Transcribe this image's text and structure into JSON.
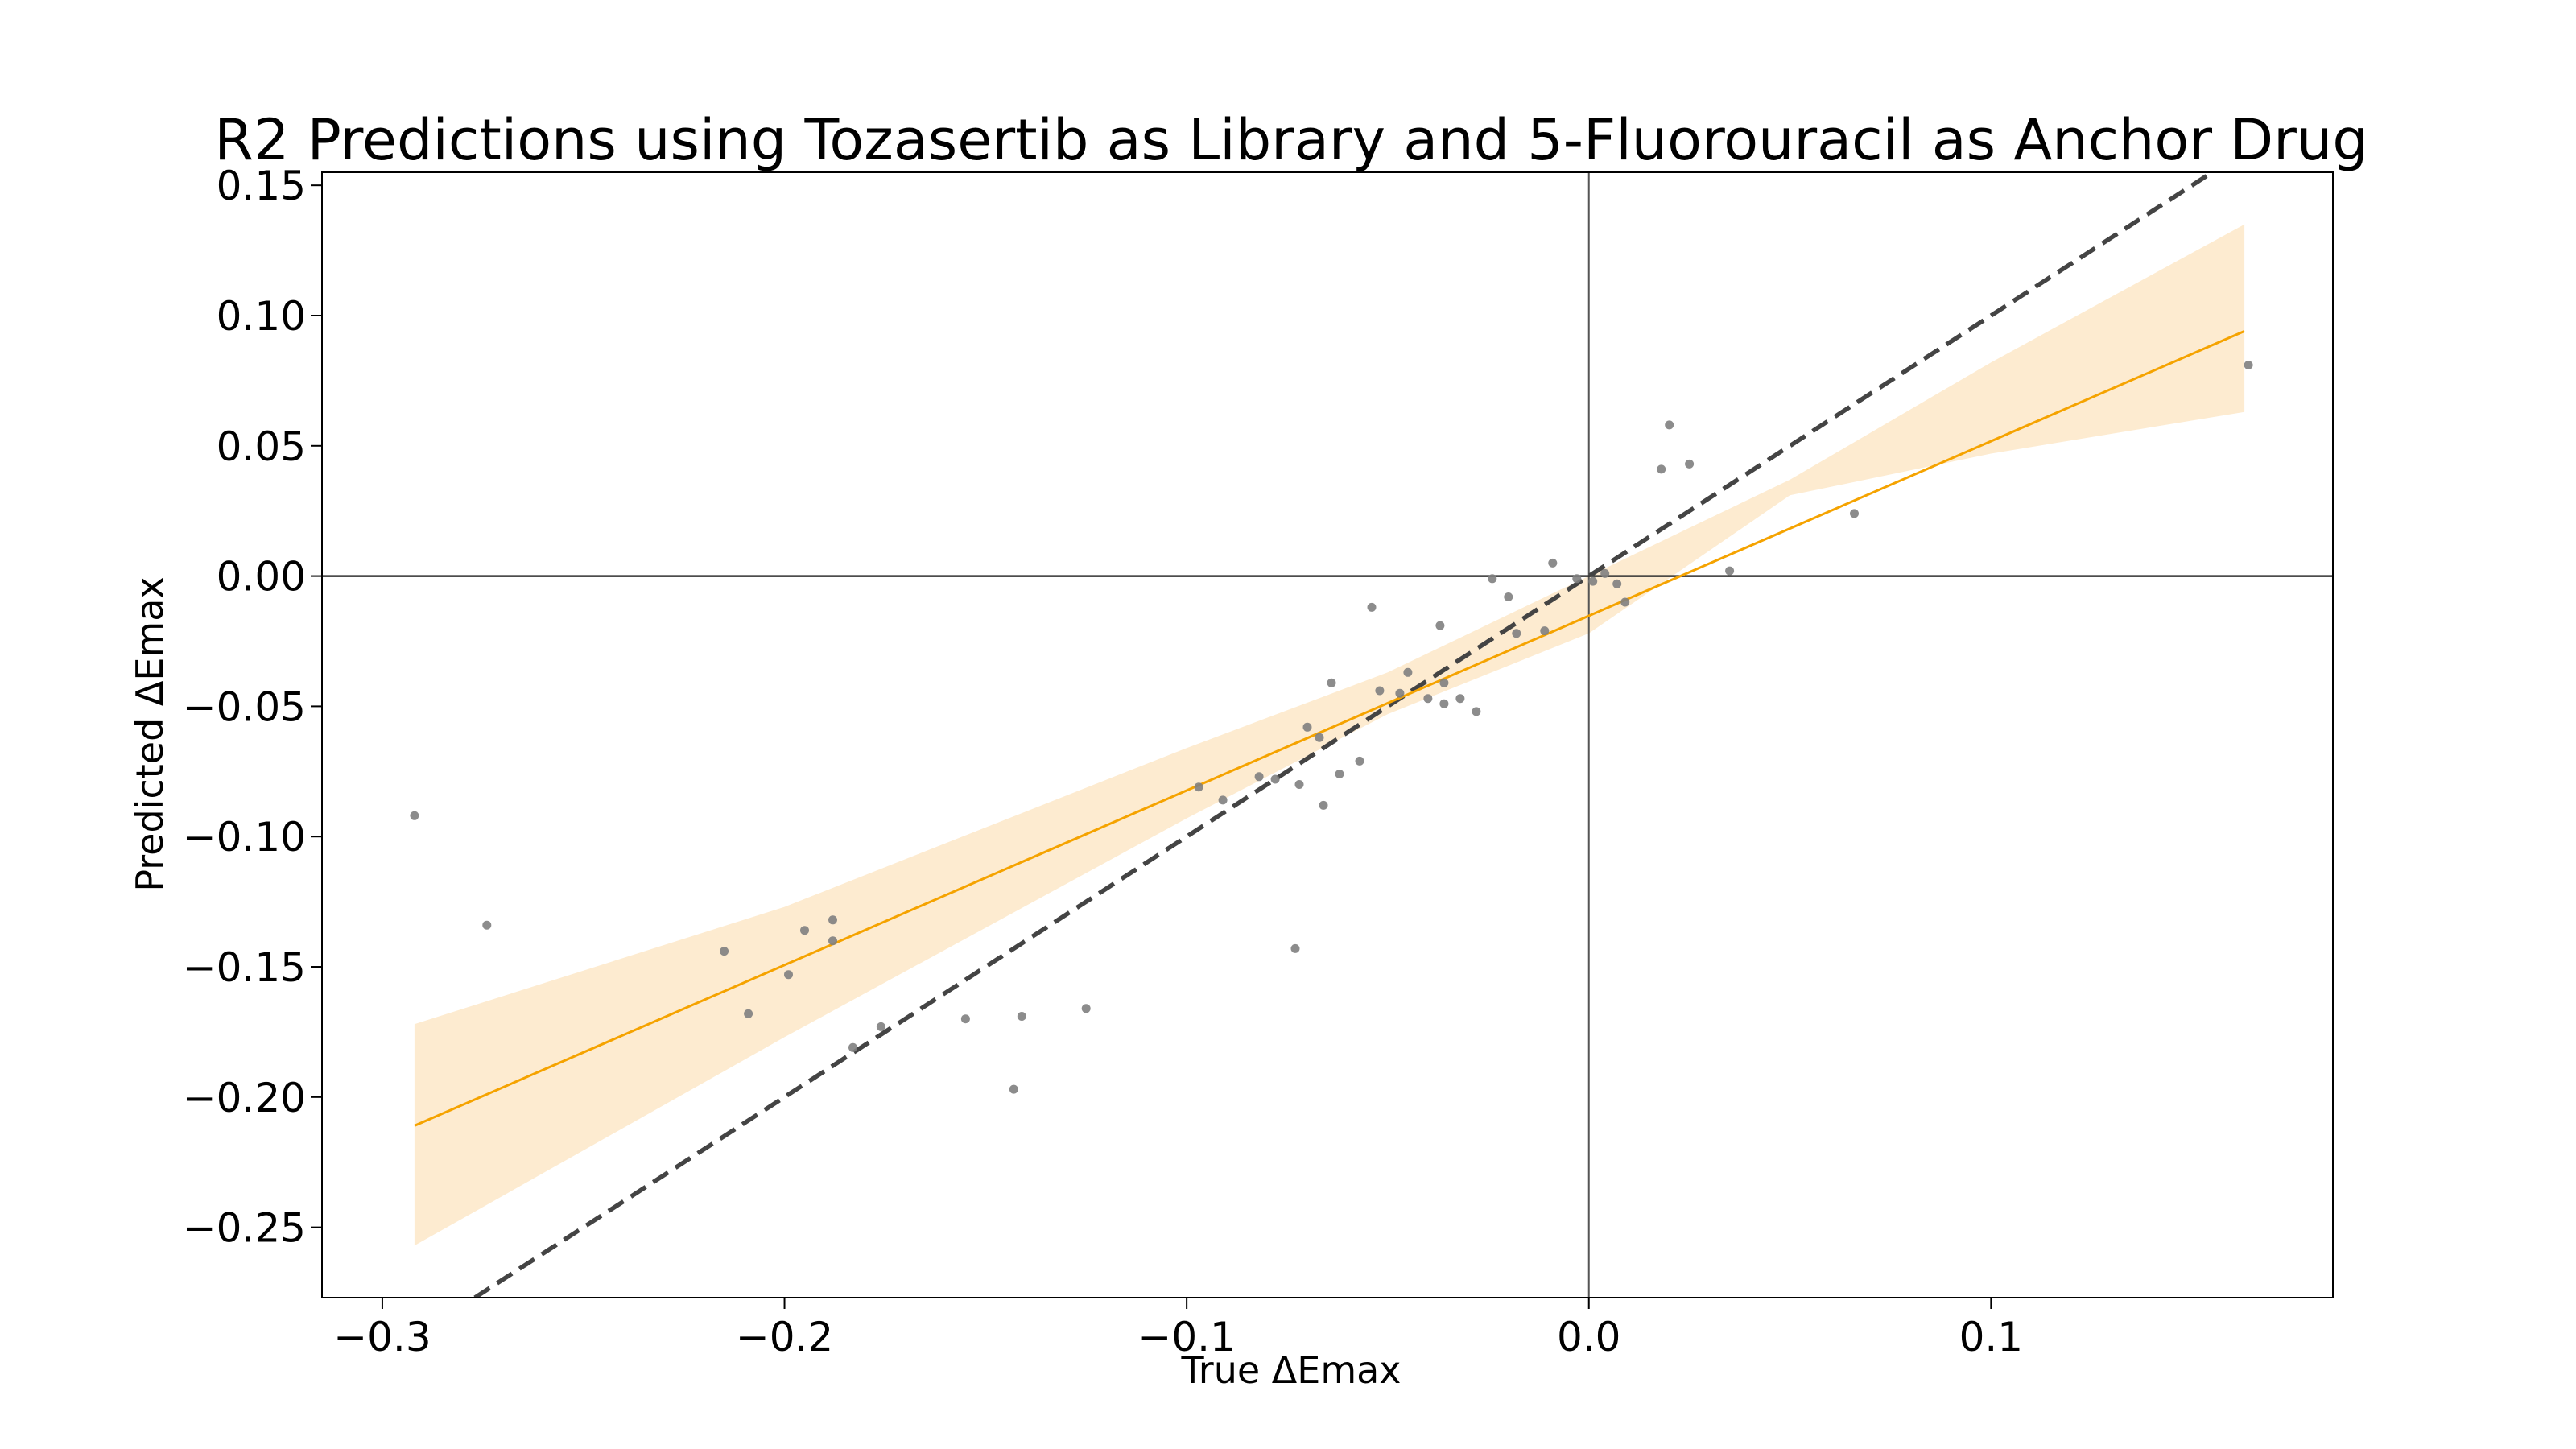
{
  "chart_data": {
    "type": "scatter",
    "title": "R2 Predictions using Tozasertib as Library and 5-Fluorouracil as Anchor Drug",
    "xlabel": "True ΔEmax",
    "ylabel": "Predicted ΔEmax",
    "xlim": [
      -0.315,
      0.185
    ],
    "ylim": [
      -0.277,
      0.155
    ],
    "x_ticks": [
      -0.3,
      -0.2,
      -0.1,
      0.0,
      0.1
    ],
    "x_tick_labels": [
      "−0.3",
      "−0.2",
      "−0.1",
      "0.0",
      "0.1"
    ],
    "y_ticks": [
      0.15,
      0.1,
      0.05,
      0.0,
      -0.05,
      -0.1,
      -0.15,
      -0.2,
      -0.25
    ],
    "y_tick_labels": [
      "0.15",
      "0.10",
      "0.05",
      "0.00",
      "−0.05",
      "−0.10",
      "−0.15",
      "−0.20",
      "−0.25"
    ],
    "grid": false,
    "reference_lines": {
      "x0": true,
      "y0": true,
      "identity_dashed": true
    },
    "regression": {
      "x_range": [
        -0.292,
        0.163
      ],
      "y_at_ends": [
        -0.211,
        0.094
      ],
      "band_lower": [
        [
          -0.292,
          -0.257
        ],
        [
          -0.2,
          -0.177
        ],
        [
          -0.1,
          -0.093
        ],
        [
          -0.05,
          -0.053
        ],
        [
          0.0,
          -0.022
        ],
        [
          0.05,
          0.031
        ],
        [
          0.1,
          0.047
        ],
        [
          0.163,
          0.063
        ]
      ],
      "band_upper": [
        [
          -0.292,
          -0.172
        ],
        [
          -0.2,
          -0.127
        ],
        [
          -0.1,
          -0.066
        ],
        [
          -0.05,
          -0.037
        ],
        [
          0.0,
          0.0
        ],
        [
          0.05,
          0.037
        ],
        [
          0.1,
          0.082
        ],
        [
          0.163,
          0.135
        ]
      ]
    },
    "points": [
      [
        -0.292,
        -0.092
      ],
      [
        -0.274,
        -0.134
      ],
      [
        -0.215,
        -0.144
      ],
      [
        -0.209,
        -0.168
      ],
      [
        -0.199,
        -0.153
      ],
      [
        -0.195,
        -0.136
      ],
      [
        -0.188,
        -0.132
      ],
      [
        -0.188,
        -0.14
      ],
      [
        -0.183,
        -0.181
      ],
      [
        -0.176,
        -0.173
      ],
      [
        -0.155,
        -0.17
      ],
      [
        -0.143,
        -0.197
      ],
      [
        -0.141,
        -0.169
      ],
      [
        -0.125,
        -0.166
      ],
      [
        -0.097,
        -0.081
      ],
      [
        -0.091,
        -0.086
      ],
      [
        -0.082,
        -0.077
      ],
      [
        -0.078,
        -0.078
      ],
      [
        -0.073,
        -0.143
      ],
      [
        -0.072,
        -0.08
      ],
      [
        -0.07,
        -0.058
      ],
      [
        -0.067,
        -0.062
      ],
      [
        -0.066,
        -0.088
      ],
      [
        -0.064,
        -0.041
      ],
      [
        -0.062,
        -0.076
      ],
      [
        -0.057,
        -0.071
      ],
      [
        -0.054,
        -0.012
      ],
      [
        -0.052,
        -0.044
      ],
      [
        -0.047,
        -0.045
      ],
      [
        -0.045,
        -0.037
      ],
      [
        -0.04,
        -0.047
      ],
      [
        -0.037,
        -0.019
      ],
      [
        -0.036,
        -0.041
      ],
      [
        -0.036,
        -0.049
      ],
      [
        -0.032,
        -0.047
      ],
      [
        -0.028,
        -0.052
      ],
      [
        -0.024,
        -0.001
      ],
      [
        -0.02,
        -0.008
      ],
      [
        -0.018,
        -0.022
      ],
      [
        -0.011,
        -0.021
      ],
      [
        -0.009,
        0.005
      ],
      [
        -0.003,
        -0.001
      ],
      [
        0.001,
        -0.002
      ],
      [
        0.004,
        0.001
      ],
      [
        0.007,
        -0.003
      ],
      [
        0.009,
        -0.01
      ],
      [
        0.018,
        0.041
      ],
      [
        0.02,
        0.058
      ],
      [
        0.025,
        0.043
      ],
      [
        0.035,
        0.002
      ],
      [
        0.066,
        0.024
      ],
      [
        0.164,
        0.081
      ]
    ],
    "colors": {
      "points": "#808080",
      "regression_line": "#f5a300",
      "band": "#fdebd0",
      "identity_line": "#444444",
      "axes": "#000000",
      "reference": "#555555"
    }
  }
}
